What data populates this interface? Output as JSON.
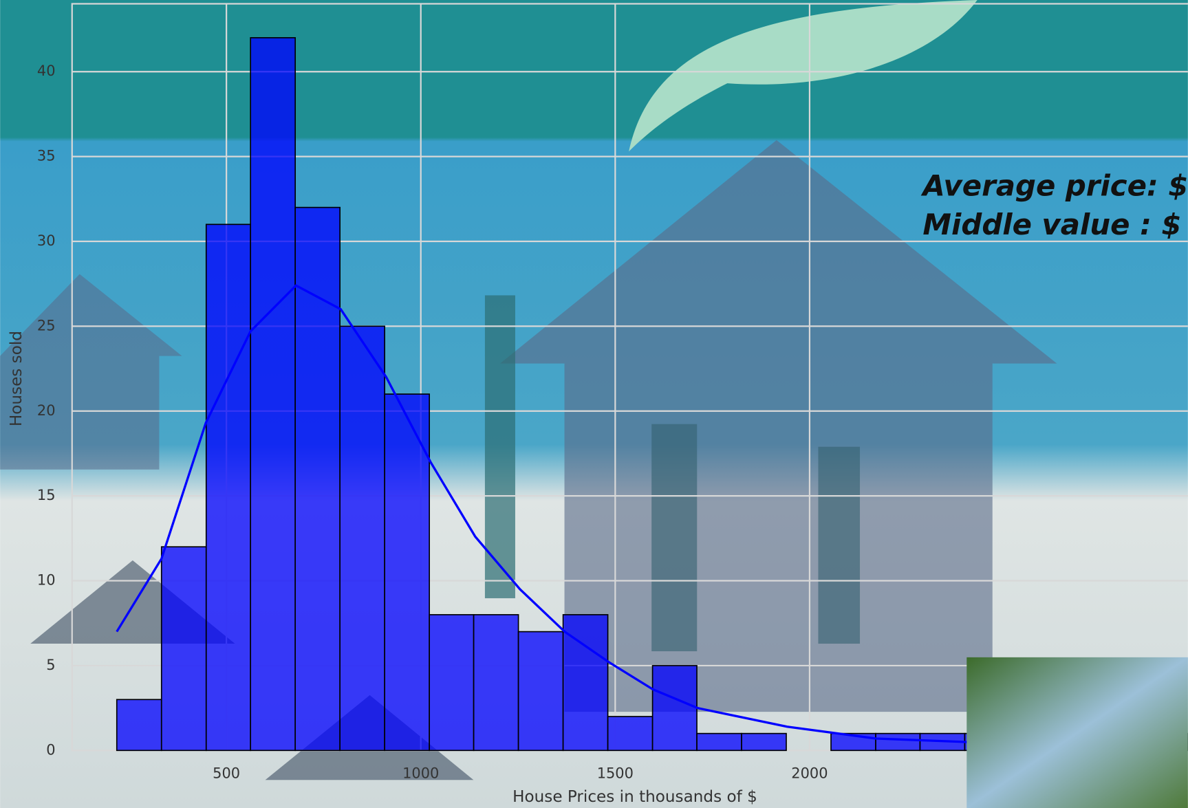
{
  "chart_data": {
    "type": "histogram",
    "xlabel": "House Prices in thousands of $",
    "ylabel": "Houses sold",
    "annotations": [
      "Average price:  $",
      "Middle value :   $"
    ],
    "bins": [
      218,
      333,
      448,
      562,
      677,
      792,
      907,
      1022,
      1136,
      1251,
      1366,
      1481,
      1596,
      1710,
      1825,
      1940,
      2055,
      2170,
      2284,
      2399,
      2514,
      2629,
      2744,
      2858,
      2973
    ],
    "counts": [
      3,
      12,
      31,
      42,
      32,
      25,
      21,
      8,
      8,
      7,
      8,
      2,
      5,
      1,
      1,
      0,
      1,
      1,
      1,
      1,
      0,
      0,
      0,
      1
    ],
    "color": "#0000ff",
    "kde": {
      "color": "#0000ff",
      "x": [
        218,
        333,
        447,
        562,
        679,
        794,
        911,
        1025,
        1140,
        1255,
        1370,
        1484,
        1597,
        1712,
        1942,
        2171,
        2401,
        2969
      ],
      "values": [
        7.0,
        11.3,
        19.3,
        24.7,
        27.4,
        26,
        22,
        17,
        12.6,
        9.5,
        7,
        5.2,
        3.6,
        2.5,
        1.4,
        0.7,
        0.5,
        0.35
      ]
    },
    "xlim": [
      103,
      2973
    ],
    "ylim": [
      0,
      44
    ],
    "xticks": [
      500,
      1000,
      1500,
      2000
    ],
    "yticks": [
      0,
      5,
      10,
      15,
      20,
      25,
      30,
      35,
      40
    ],
    "grid": true
  }
}
